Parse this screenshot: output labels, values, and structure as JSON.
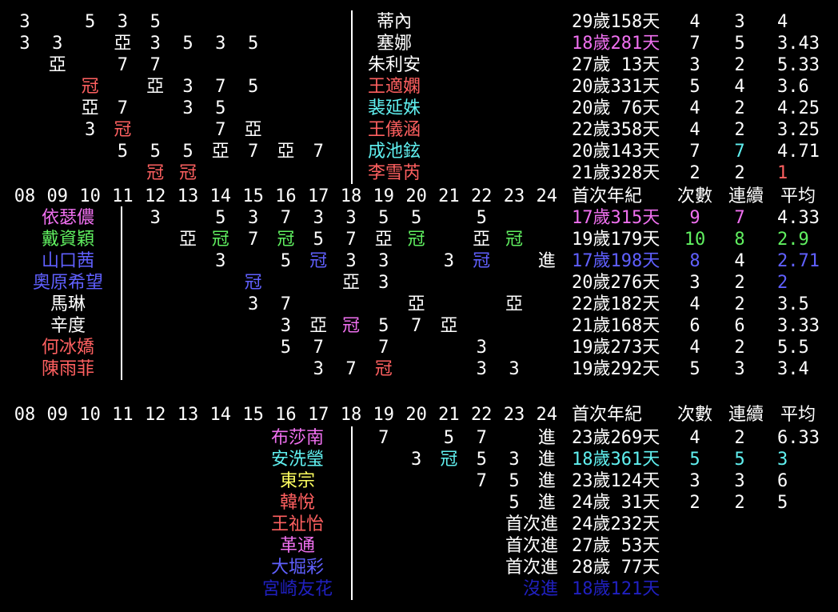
{
  "colors": {
    "white": "#ffffff",
    "pink": "#f070f0",
    "red": "#ff6060",
    "cyan": "#60f0f0",
    "green": "#60f060",
    "blue": "#6060ff",
    "yellow": "#ffff60",
    "darkblue": "#2020c0"
  },
  "top": {
    "rows": [
      {
        "name": "蒂內",
        "cells": [
          [
            "08",
            "3"
          ],
          [
            "10",
            "5"
          ],
          [
            "11",
            "3"
          ],
          [
            "12",
            "5"
          ]
        ],
        "age": "29歲158天",
        "count": "4",
        "streak": "3",
        "avg": "4",
        "name_color": "white"
      },
      {
        "name": "塞娜",
        "cells": [
          [
            "08",
            "3"
          ],
          [
            "09",
            "3"
          ],
          [
            "11",
            "亞"
          ],
          [
            "12",
            "3"
          ],
          [
            "13",
            "5"
          ],
          [
            "14",
            "3"
          ],
          [
            "15",
            "5"
          ]
        ],
        "age": "18歲281天",
        "count": "7",
        "streak": "5",
        "avg": "3.43",
        "name_color": "white",
        "age_color": "pink"
      },
      {
        "name": "朱利安",
        "cells": [
          [
            "09",
            "亞"
          ],
          [
            "11",
            "7"
          ],
          [
            "12",
            "7"
          ]
        ],
        "age": "27歲 13天",
        "count": "3",
        "streak": "2",
        "avg": "5.33",
        "name_color": "white"
      },
      {
        "name": "王適嫻",
        "cells": [
          [
            "10",
            "冠",
            "red"
          ],
          [
            "12",
            "亞"
          ],
          [
            "13",
            "3"
          ],
          [
            "14",
            "7"
          ],
          [
            "15",
            "5"
          ]
        ],
        "age": "20歲331天",
        "count": "5",
        "streak": "4",
        "avg": "3.6",
        "name_color": "red"
      },
      {
        "name": "裴延姝",
        "cells": [
          [
            "10",
            "亞"
          ],
          [
            "11",
            "7"
          ],
          [
            "13",
            "3"
          ],
          [
            "14",
            "5"
          ]
        ],
        "age": "20歲 76天",
        "count": "4",
        "streak": "2",
        "avg": "4.25",
        "name_color": "cyan"
      },
      {
        "name": "王儀涵",
        "cells": [
          [
            "10",
            "3"
          ],
          [
            "11",
            "冠",
            "red"
          ],
          [
            "14",
            "7"
          ],
          [
            "15",
            "亞"
          ]
        ],
        "age": "22歲358天",
        "count": "4",
        "streak": "2",
        "avg": "3.25",
        "name_color": "red"
      },
      {
        "name": "成池鉉",
        "cells": [
          [
            "11",
            "5"
          ],
          [
            "12",
            "5"
          ],
          [
            "13",
            "5"
          ],
          [
            "14",
            "亞"
          ],
          [
            "15",
            "7"
          ],
          [
            "16",
            "亞"
          ],
          [
            "17",
            "7"
          ]
        ],
        "age": "20歲143天",
        "count": "7",
        "streak": "7",
        "avg": "4.71",
        "name_color": "cyan",
        "streak_color": "cyan"
      },
      {
        "name": "李雪芮",
        "cells": [
          [
            "12",
            "冠",
            "red"
          ],
          [
            "13",
            "冠",
            "red"
          ]
        ],
        "age": "21歲328天",
        "count": "2",
        "streak": "2",
        "avg": "1",
        "name_color": "red",
        "avg_color": "red"
      }
    ]
  },
  "header": {
    "years": [
      "08",
      "09",
      "10",
      "11",
      "12",
      "13",
      "14",
      "15",
      "16",
      "17",
      "18",
      "19",
      "20",
      "21",
      "22",
      "23",
      "24"
    ],
    "age_label": "首次年紀",
    "count_label": "次數",
    "streak_label": "連續",
    "avg_label": "平均"
  },
  "middle": {
    "rows": [
      {
        "name": "依瑟儂",
        "name_color": "pink",
        "cells": [
          [
            "12",
            "3"
          ],
          [
            "14",
            "5"
          ],
          [
            "15",
            "3"
          ],
          [
            "16",
            "7"
          ],
          [
            "17",
            "3"
          ],
          [
            "18",
            "3"
          ],
          [
            "19",
            "5"
          ],
          [
            "20",
            "5"
          ],
          [
            "22",
            "5"
          ]
        ],
        "age": "17歲315天",
        "count": "9",
        "streak": "7",
        "avg": "4.33",
        "age_color": "pink",
        "count_color": "pink",
        "streak_color": "pink"
      },
      {
        "name": "戴資穎",
        "name_color": "green",
        "cells": [
          [
            "13",
            "亞"
          ],
          [
            "14",
            "冠",
            "green"
          ],
          [
            "15",
            "7"
          ],
          [
            "16",
            "冠",
            "green"
          ],
          [
            "17",
            "5"
          ],
          [
            "18",
            "7"
          ],
          [
            "19",
            "亞"
          ],
          [
            "20",
            "冠",
            "green"
          ],
          [
            "22",
            "亞"
          ],
          [
            "23",
            "冠",
            "green"
          ]
        ],
        "age": "19歲179天",
        "count": "10",
        "streak": "8",
        "avg": "2.9",
        "count_color": "green",
        "streak_color": "green",
        "avg_color": "green"
      },
      {
        "name": "山口茜",
        "name_color": "blue",
        "cells": [
          [
            "14",
            "3"
          ],
          [
            "16",
            "5"
          ],
          [
            "17",
            "冠",
            "blue"
          ],
          [
            "18",
            "3"
          ],
          [
            "19",
            "3"
          ],
          [
            "21",
            "3"
          ],
          [
            "22",
            "冠",
            "blue"
          ],
          [
            "24",
            "進"
          ]
        ],
        "age": "17歲198天",
        "count": "8",
        "streak": "4",
        "avg": "2.71",
        "age_color": "blue",
        "count_color": "blue",
        "avg_color": "blue"
      },
      {
        "name": "奧原希望",
        "name_color": "blue",
        "cells": [
          [
            "15",
            "冠",
            "blue"
          ],
          [
            "18",
            "亞"
          ],
          [
            "19",
            "3"
          ]
        ],
        "age": "20歲276天",
        "count": "3",
        "streak": "2",
        "avg": "2",
        "avg_color": "blue"
      },
      {
        "name": "馬琳",
        "name_color": "white",
        "cells": [
          [
            "15",
            "3"
          ],
          [
            "16",
            "7"
          ],
          [
            "20",
            "亞"
          ],
          [
            "23",
            "亞"
          ]
        ],
        "age": "22歲182天",
        "count": "4",
        "streak": "2",
        "avg": "3.5"
      },
      {
        "name": "辛度",
        "name_color": "white",
        "cells": [
          [
            "16",
            "3"
          ],
          [
            "17",
            "亞"
          ],
          [
            "18",
            "冠",
            "pink"
          ],
          [
            "19",
            "5"
          ],
          [
            "20",
            "7"
          ],
          [
            "21",
            "亞"
          ]
        ],
        "age": "21歲168天",
        "count": "6",
        "streak": "6",
        "avg": "3.33"
      },
      {
        "name": "何冰嬌",
        "name_color": "red",
        "cells": [
          [
            "16",
            "5"
          ],
          [
            "17",
            "7"
          ],
          [
            "19",
            "7"
          ],
          [
            "22",
            "3"
          ]
        ],
        "age": "19歲273天",
        "count": "4",
        "streak": "2",
        "avg": "5.5"
      },
      {
        "name": "陳雨菲",
        "name_color": "red",
        "cells": [
          [
            "17",
            "3"
          ],
          [
            "18",
            "7"
          ],
          [
            "19",
            "冠",
            "red"
          ],
          [
            "22",
            "3"
          ],
          [
            "23",
            "3"
          ]
        ],
        "age": "19歲292天",
        "count": "5",
        "streak": "3",
        "avg": "3.4"
      }
    ]
  },
  "bottom": {
    "rows": [
      {
        "name": "布莎南",
        "name_color": "pink",
        "cells": [
          [
            "19",
            "7"
          ],
          [
            "21",
            "5"
          ],
          [
            "22",
            "7"
          ],
          [
            "24",
            "進"
          ]
        ],
        "age": "23歲269天",
        "count": "4",
        "streak": "2",
        "avg": "6.33"
      },
      {
        "name": "安洗瑩",
        "name_color": "cyan",
        "cells": [
          [
            "20",
            "3"
          ],
          [
            "21",
            "冠",
            "cyan"
          ],
          [
            "22",
            "5"
          ],
          [
            "23",
            "3"
          ],
          [
            "24",
            "進"
          ]
        ],
        "age": "18歲361天",
        "count": "5",
        "streak": "5",
        "avg": "3",
        "age_color": "cyan",
        "count_color": "cyan",
        "streak_color": "cyan",
        "avg_color": "cyan"
      },
      {
        "name": "東宗",
        "name_color": "yellow",
        "cells": [
          [
            "22",
            "7"
          ],
          [
            "23",
            "5"
          ],
          [
            "24",
            "進"
          ]
        ],
        "age": "23歲124天",
        "count": "3",
        "streak": "3",
        "avg": "6"
      },
      {
        "name": "韓悅",
        "name_color": "red",
        "cells": [
          [
            "23",
            "5"
          ],
          [
            "24",
            "進"
          ]
        ],
        "age": "24歲 31天",
        "count": "2",
        "streak": "2",
        "avg": "5"
      },
      {
        "name": "王祉怡",
        "name_color": "red",
        "tail": "首次進",
        "age": "24歲232天"
      },
      {
        "name": "革通",
        "name_color": "pink",
        "tail": "首次進",
        "age": "27歲 53天"
      },
      {
        "name": "大堀彩",
        "name_color": "blue",
        "tail": "首次進",
        "age": "28歲 77天"
      },
      {
        "name": "宮崎友花",
        "name_color": "darkblue",
        "tail": "沒進",
        "age": "18歲121天",
        "age_color": "darkblue",
        "tail_color": "darkblue"
      }
    ]
  }
}
